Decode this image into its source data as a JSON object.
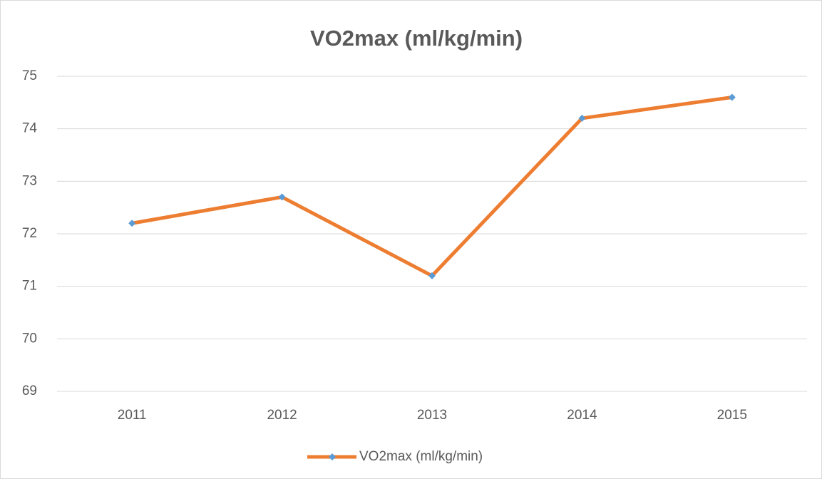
{
  "chart_data": {
    "type": "line",
    "title": "VO2max (ml/kg/min)",
    "categories": [
      "2011",
      "2012",
      "2013",
      "2014",
      "2015"
    ],
    "series": [
      {
        "name": "VO2max (ml/kg/min)",
        "color": "#ed7d31",
        "marker_color": "#5b9bd5",
        "values": [
          72.2,
          72.7,
          71.2,
          74.2,
          74.6
        ]
      }
    ],
    "ylim": [
      69,
      75
    ],
    "yticks": [
      69,
      70,
      71,
      72,
      73,
      74,
      75
    ],
    "grid": true,
    "legend": "bottom"
  }
}
